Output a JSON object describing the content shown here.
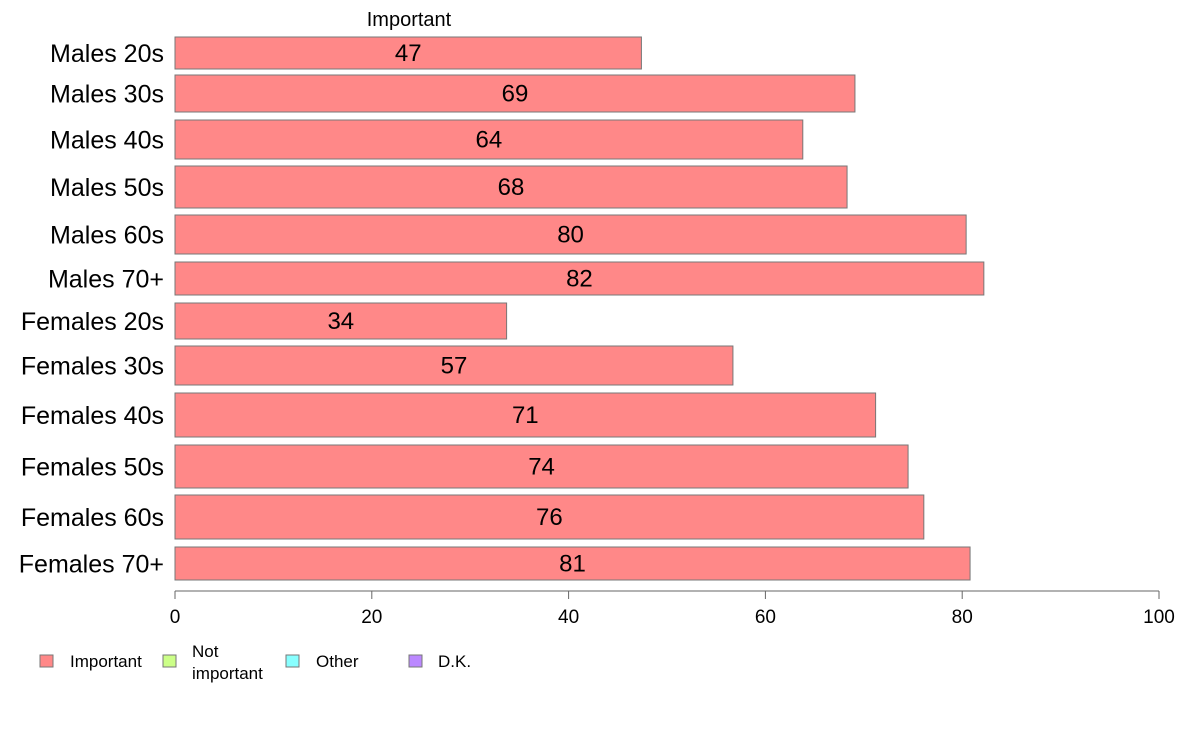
{
  "chart_data": {
    "type": "bar",
    "orientation": "horizontal",
    "title": "",
    "xlabel": "",
    "ylabel": "",
    "series_label": "Important",
    "categories": [
      "Males 20s",
      "Males 30s",
      "Males 40s",
      "Males 50s",
      "Males 60s",
      "Males 70+",
      "Females 20s",
      "Females 30s",
      "Females 40s",
      "Females 50s",
      "Females 60s",
      "Females 70+"
    ],
    "series": [
      {
        "name": "Important",
        "color": "#ff8888",
        "values": [
          47.4,
          69.1,
          63.8,
          68.3,
          80.4,
          82.2,
          33.7,
          56.7,
          71.2,
          74.5,
          76.1,
          80.8
        ],
        "labels": [
          "47",
          "69",
          "64",
          "68",
          "80",
          "82",
          "34",
          "57",
          "71",
          "74",
          "76",
          "81"
        ]
      }
    ],
    "xlim": [
      0,
      100
    ],
    "xticks": [
      0,
      20,
      40,
      60,
      80,
      100
    ],
    "grid": false,
    "legend": {
      "placement": "bottom-left",
      "items": [
        {
          "label": "Important",
          "lines": [
            "Important"
          ],
          "color": "#ff8888"
        },
        {
          "label": "Not important",
          "lines": [
            "Not",
            "important"
          ],
          "color": "#ccff88"
        },
        {
          "label": "Other",
          "lines": [
            "Other"
          ],
          "color": "#88ffff"
        },
        {
          "label": "D.K.",
          "lines": [
            "D.K."
          ],
          "color": "#bb88ff"
        }
      ]
    }
  }
}
